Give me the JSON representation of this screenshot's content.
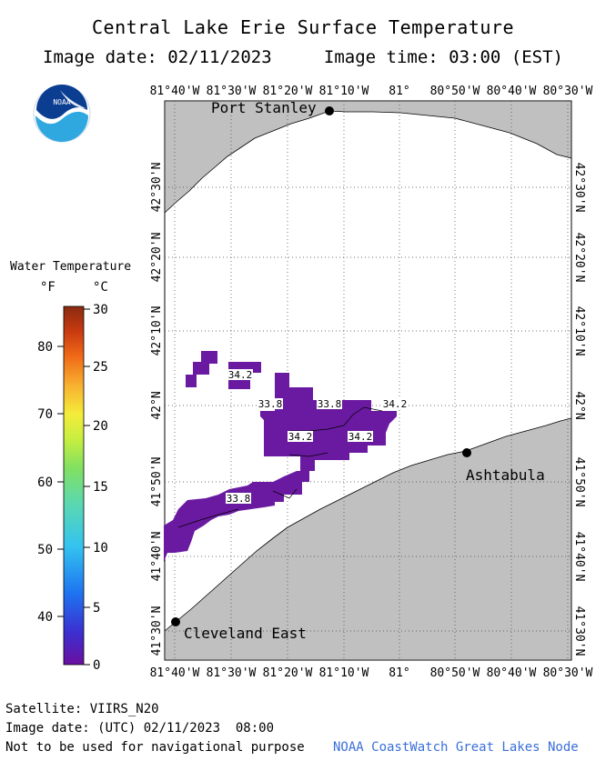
{
  "header": {
    "title": "Central Lake Erie Surface Temperature",
    "image_date": "Image date: 02/11/2023",
    "image_time": "Image time: 03:00 (EST)"
  },
  "logo": {
    "text": "NOAA",
    "icon": "noaa-logo-icon"
  },
  "legend": {
    "title": "Water Temperature",
    "unit_f": "°F",
    "unit_c": "°C",
    "f_ticks": [
      "80",
      "70",
      "60",
      "50",
      "40"
    ],
    "c_ticks": [
      "30",
      "25",
      "20",
      "15",
      "10",
      "5",
      "0"
    ],
    "colormap": [
      "#6a0fa0",
      "#3c2fd0",
      "#1e74f0",
      "#34c3f0",
      "#5bd8b0",
      "#82e060",
      "#c8ee40",
      "#f5ec3a",
      "#f8b030",
      "#f06a18",
      "#c83a10",
      "#8a2a10"
    ]
  },
  "map": {
    "lon_labels": [
      "81°40'W",
      "81°30'W",
      "81°20'W",
      "81°10'W",
      "81°",
      "80°50'W",
      "80°40'W",
      "80°30'W"
    ],
    "lat_labels": [
      "42°30'N",
      "42°20'N",
      "42°10'N",
      "42°N",
      "41°50'N",
      "41°40'N",
      "41°30'N"
    ],
    "cities": [
      {
        "name": "Port Stanley"
      },
      {
        "name": "Ashtabula"
      },
      {
        "name": "Cleveland East"
      }
    ],
    "temp_labels": [
      "34.2",
      "33.8",
      "33.8",
      "34.2",
      "34.2",
      "34.2",
      "33.8"
    ],
    "colors": {
      "land": "#c0c0c0",
      "water": "#ffffff",
      "ice_temp": "#6a1aa0"
    }
  },
  "footer": {
    "satellite": "Satellite: VIIRS_N20",
    "utc_date": "Image date: (UTC) 02/11/2023  08:00",
    "disclaimer": "Not to be used for navigational purpose",
    "credit": "NOAA CoastWatch Great Lakes Node"
  }
}
